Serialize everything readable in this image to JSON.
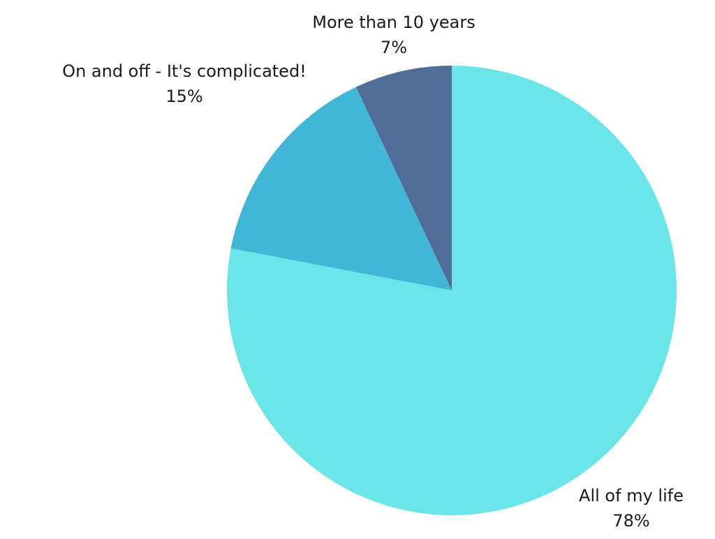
{
  "chart_data": {
    "type": "pie",
    "title": "",
    "start_angle_deg": 0,
    "direction": "clockwise",
    "slices": [
      {
        "label": "All of my life",
        "value": 78,
        "value_label": "78%",
        "color": "#6ae5e8"
      },
      {
        "label": "On and off - It's complicated!",
        "value": 15,
        "value_label": "15%",
        "color": "#42b6d6"
      },
      {
        "label": "More than 10 years",
        "value": 7,
        "value_label": "7%",
        "color": "#4f6d96"
      }
    ],
    "labels_position": "outside",
    "legend": "none"
  }
}
